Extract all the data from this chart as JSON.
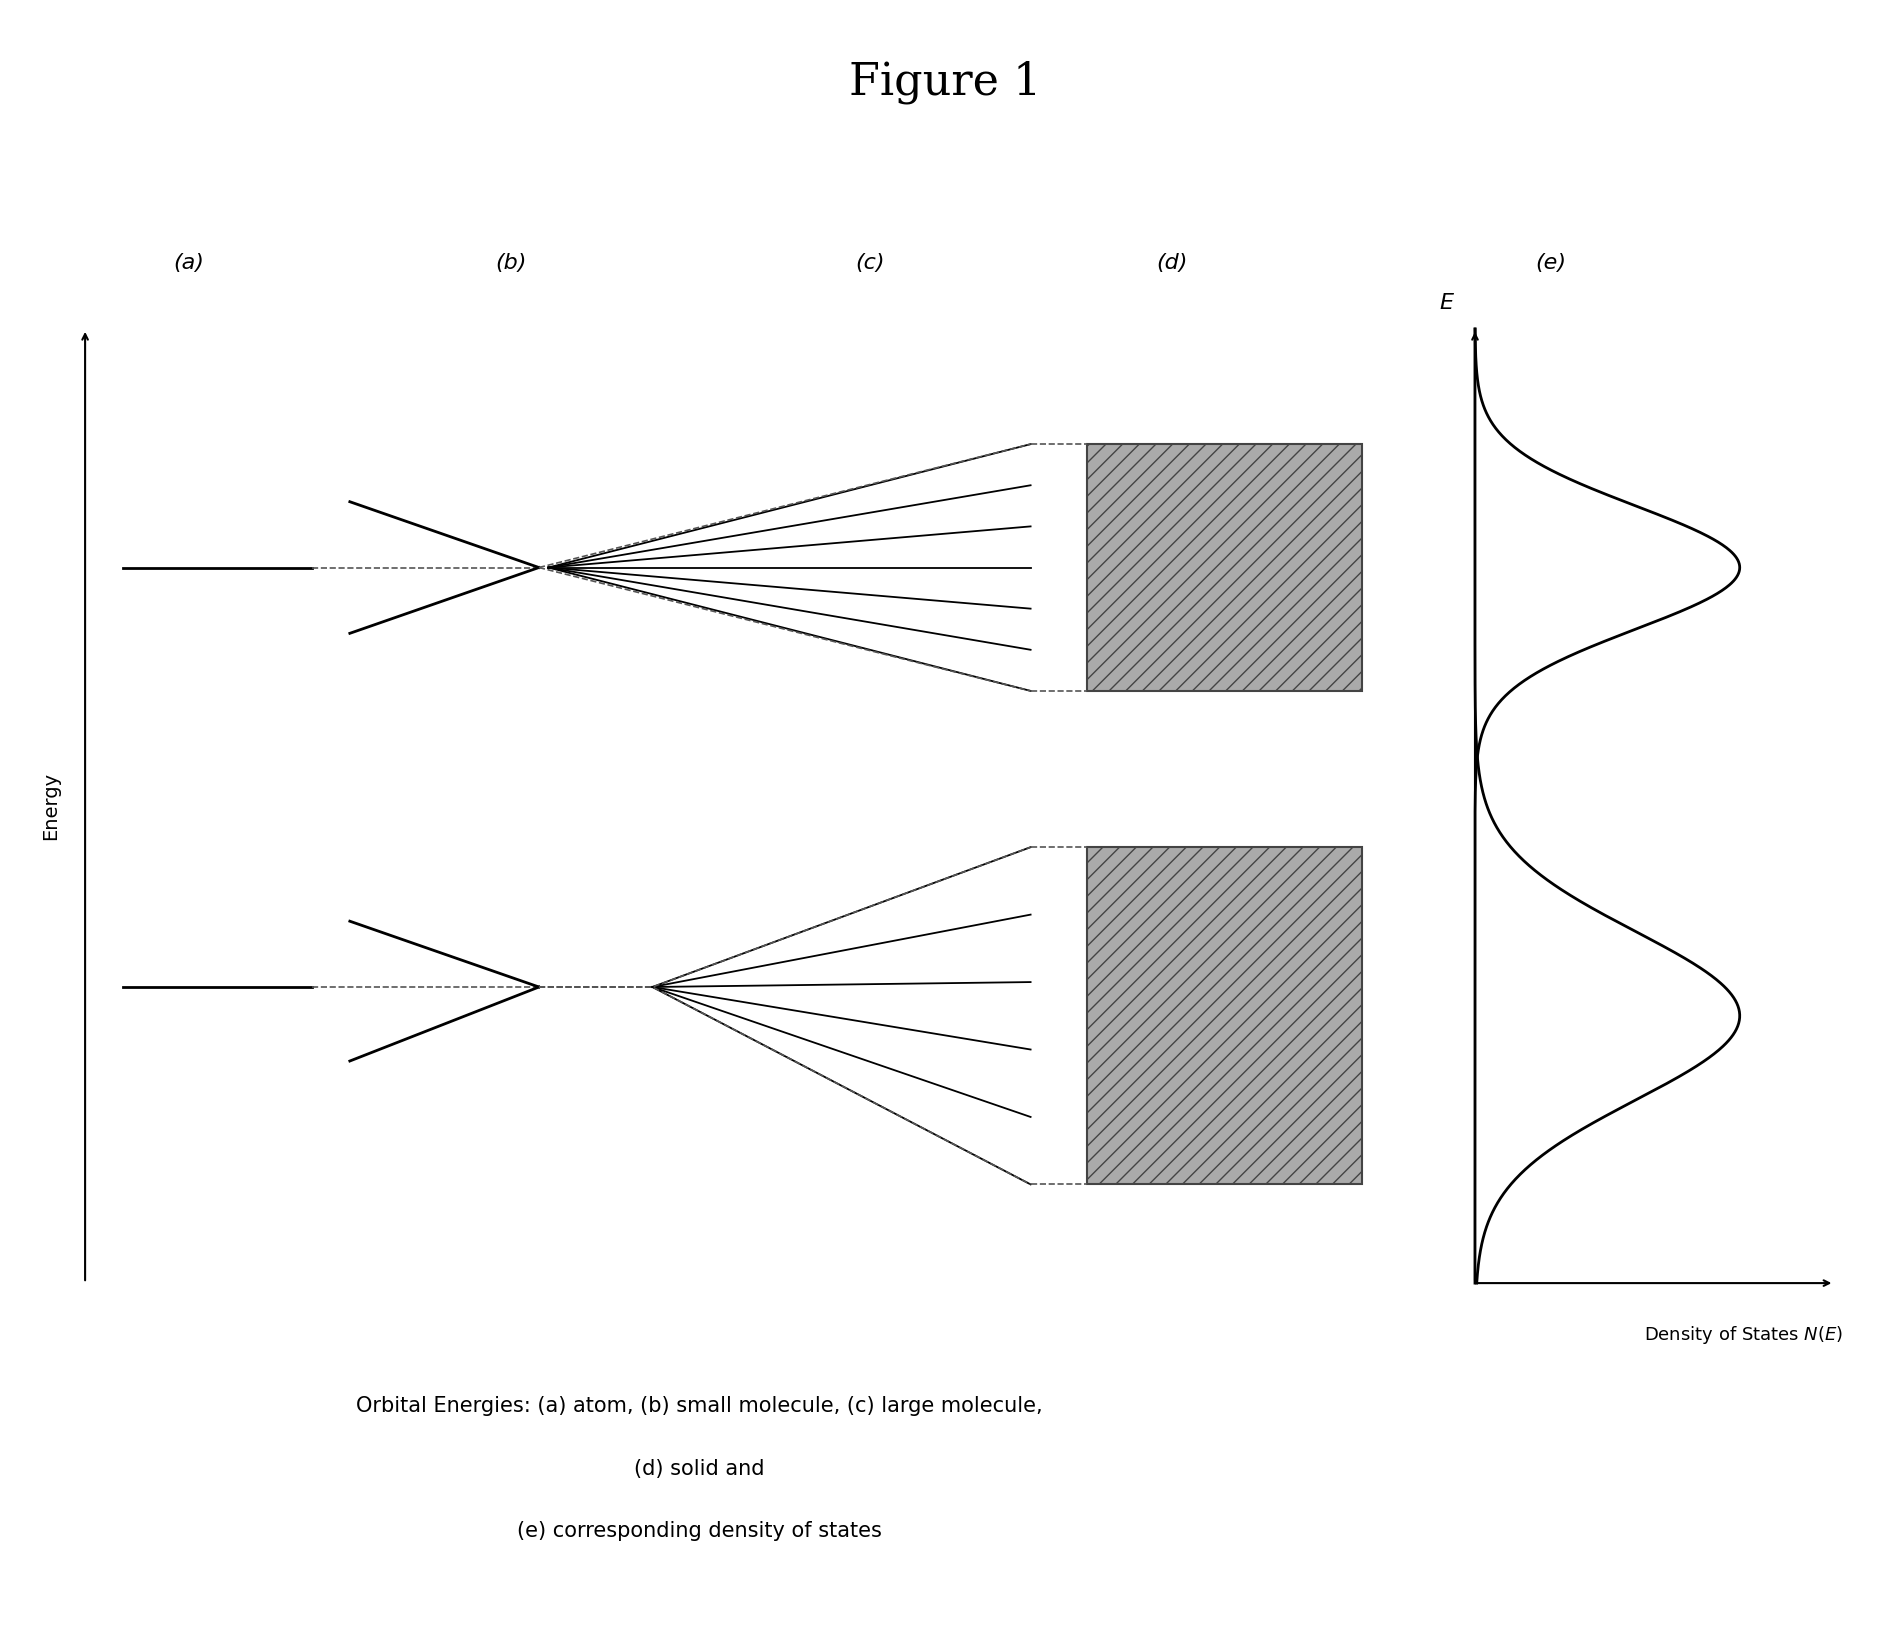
{
  "title": "Figure 1",
  "title_fontsize": 32,
  "background_color": "#ffffff",
  "labels": [
    "(a)",
    "(b)",
    "(c)",
    "(d)",
    "(e)"
  ],
  "label_fontsize": 16,
  "energy_label": "Energy",
  "caption_lines": [
    "Orbital Energies: (a) atom, (b) small molecule, (c) large molecule,",
    "(d) solid and",
    "(e) corresponding density of states"
  ],
  "caption_fontsize": 15,
  "line_color": "#000000",
  "dashed_color": "#555555",
  "hatch_facecolor": "#aaaaaa"
}
